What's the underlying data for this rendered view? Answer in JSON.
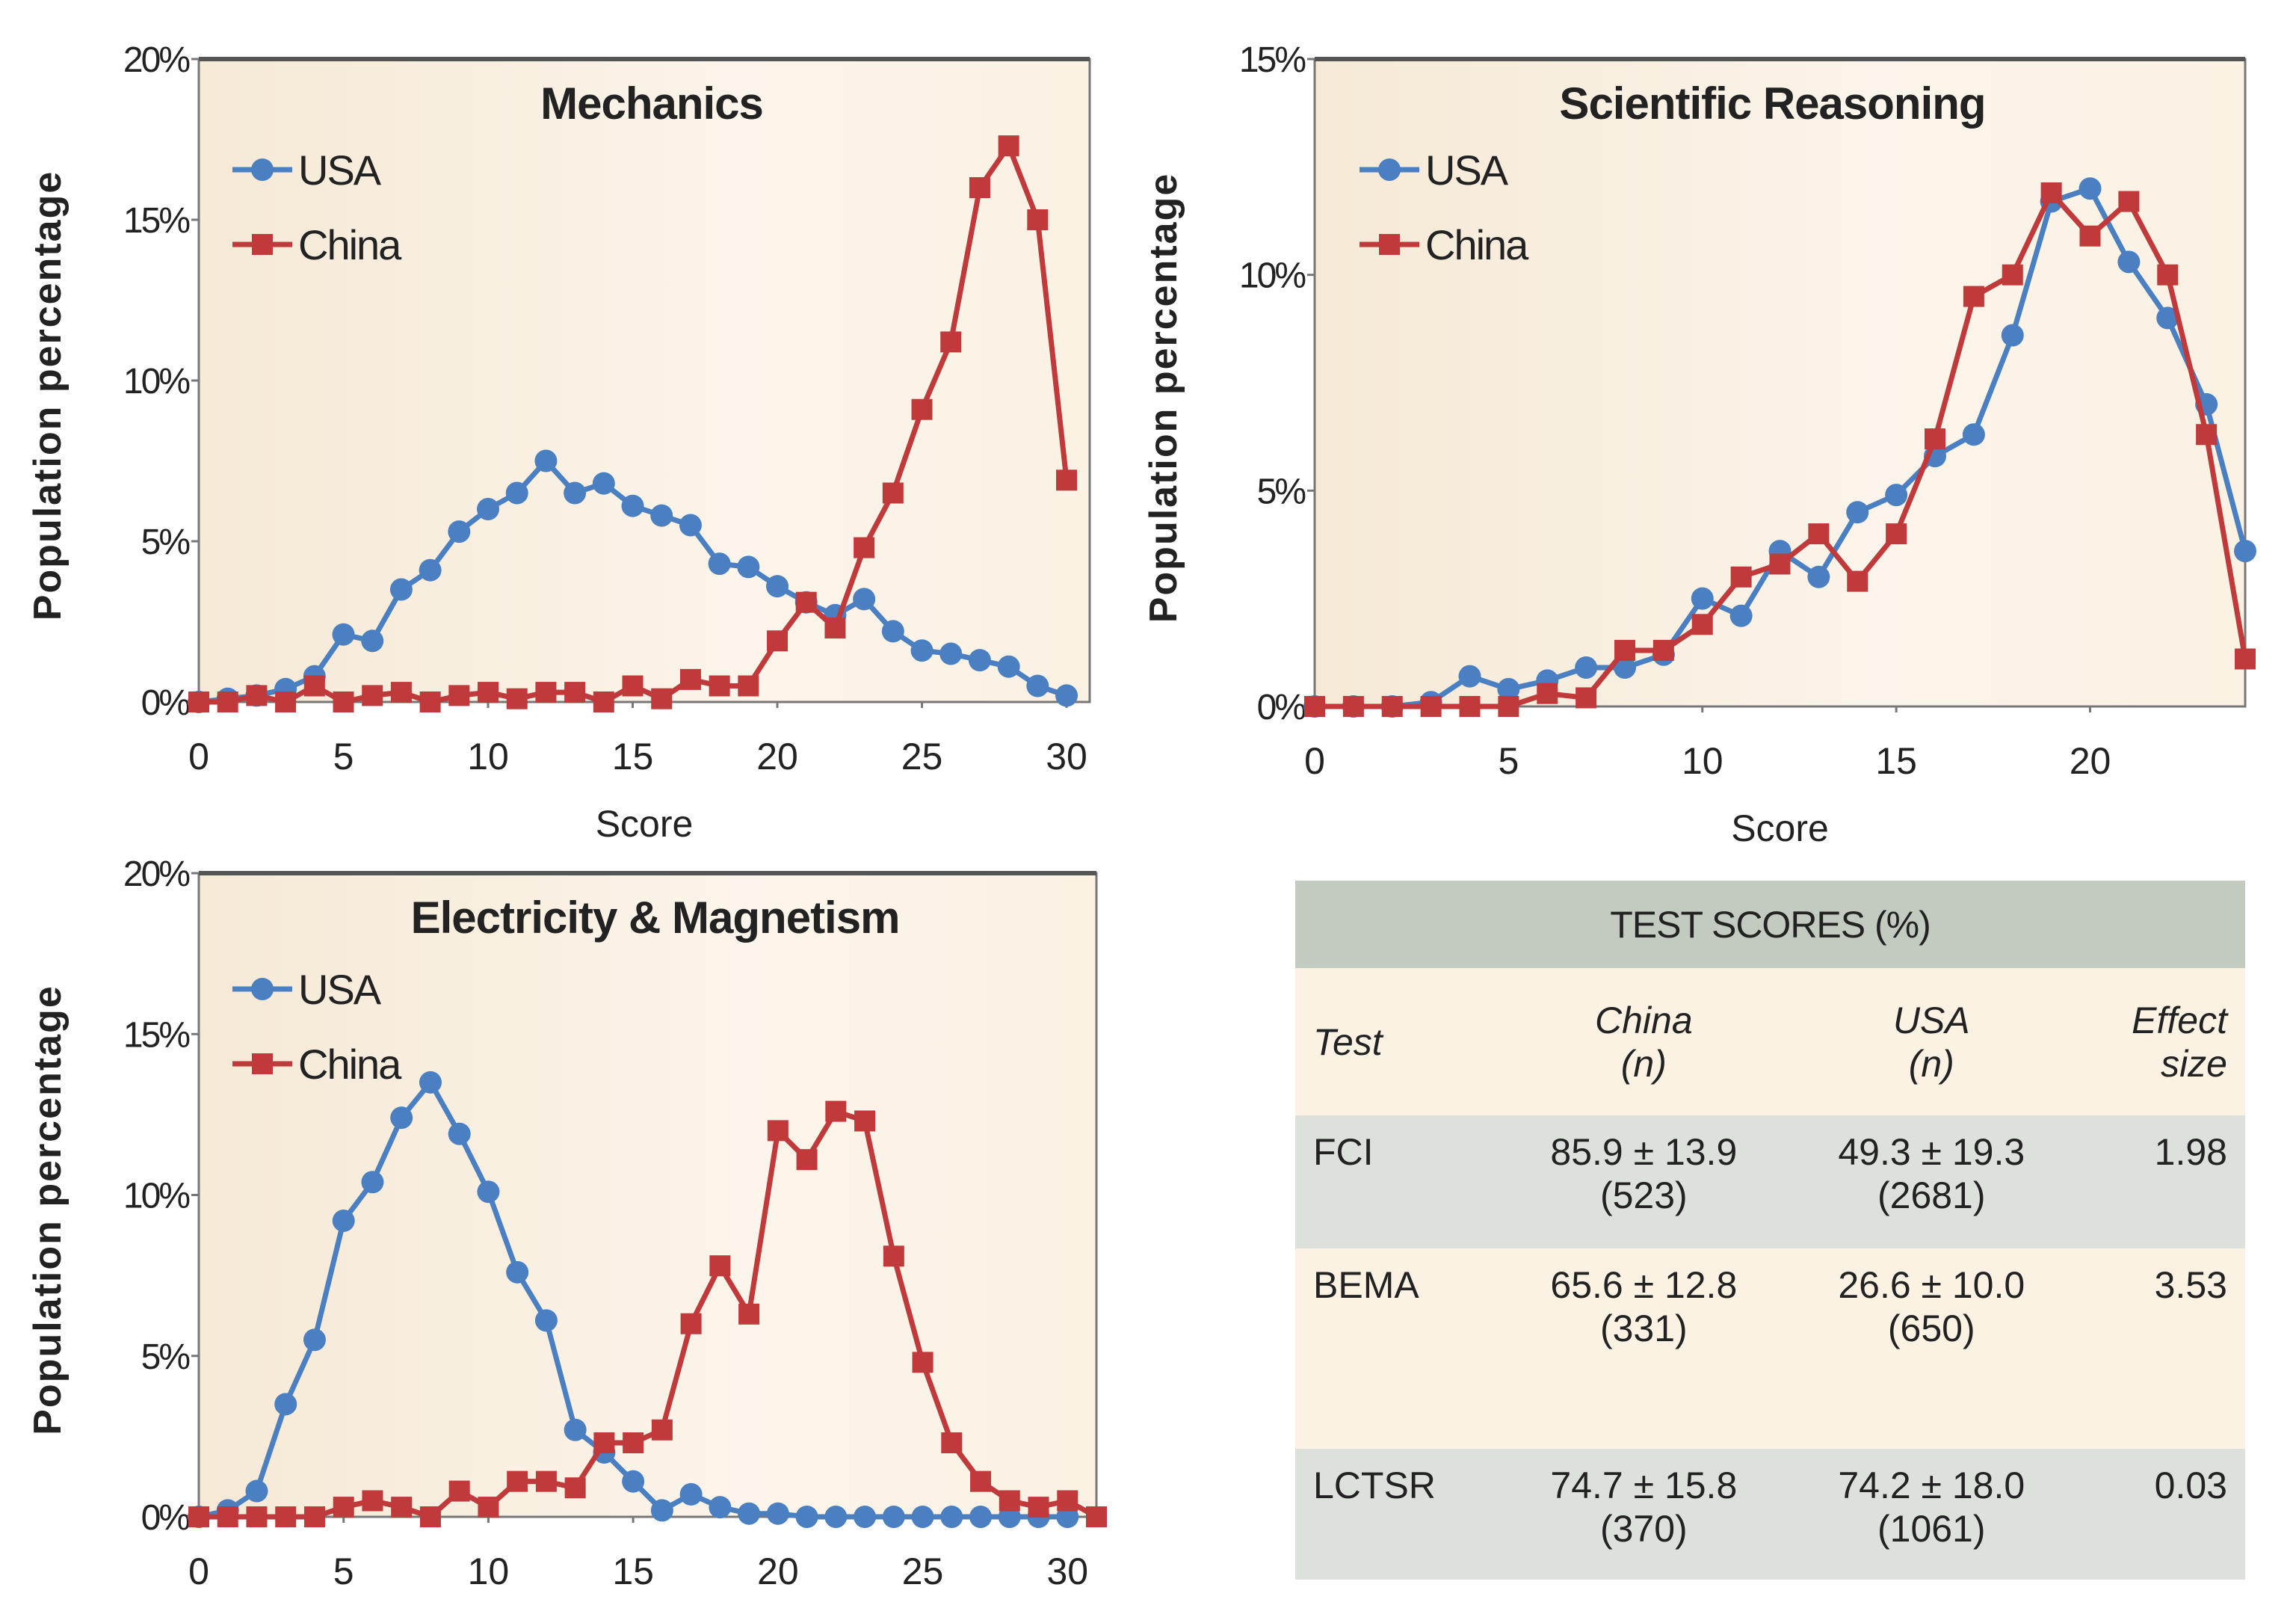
{
  "colors": {
    "USA": "#4a7fc1",
    "China": "#c0393b",
    "plot_bg": "#f7ecdb",
    "table_header": "#c3cbc0",
    "table_shaded": "#dde1db"
  },
  "chart_data": [
    {
      "type": "line",
      "title": "Mechanics",
      "xlabel": "Score",
      "ylabel": "Population percentage",
      "xlim": [
        0,
        30.8
      ],
      "ylim": [
        0,
        20
      ],
      "xticks": [
        0,
        5,
        10,
        15,
        20,
        25,
        30
      ],
      "yticks": [
        "0%",
        "5%",
        "10%",
        "15%",
        "20%"
      ],
      "legend": "top-left",
      "grid": false,
      "series": [
        {
          "name": "USA",
          "marker": "circle",
          "x": [
            0,
            1,
            2,
            3,
            4,
            5,
            6,
            7,
            8,
            9,
            10,
            11,
            12,
            13,
            14,
            15,
            16,
            17,
            18,
            19,
            20,
            21,
            22,
            23,
            24,
            25,
            26,
            27,
            28,
            29,
            30
          ],
          "values": [
            0,
            0.1,
            0.2,
            0.4,
            0.8,
            2.1,
            1.9,
            3.5,
            4.1,
            5.3,
            6.0,
            6.5,
            7.5,
            6.5,
            6.8,
            6.1,
            5.8,
            5.5,
            4.3,
            4.2,
            3.6,
            3.1,
            2.7,
            3.2,
            2.2,
            1.6,
            1.5,
            1.3,
            1.1,
            0.5,
            0.2
          ]
        },
        {
          "name": "China",
          "marker": "square",
          "x": [
            0,
            1,
            2,
            3,
            4,
            5,
            6,
            7,
            8,
            9,
            10,
            11,
            12,
            13,
            14,
            15,
            16,
            17,
            18,
            19,
            20,
            21,
            22,
            23,
            24,
            25,
            26,
            27,
            28,
            29,
            30
          ],
          "values": [
            0,
            0,
            0.2,
            0,
            0.5,
            0,
            0.2,
            0.3,
            0,
            0.2,
            0.3,
            0.1,
            0.3,
            0.3,
            0,
            0.5,
            0.1,
            0.7,
            0.5,
            0.5,
            1.9,
            3.1,
            2.3,
            4.8,
            6.5,
            9.1,
            11.2,
            16.0,
            17.3,
            15.0,
            6.9
          ]
        }
      ]
    },
    {
      "type": "line",
      "title": "Scientific Reasoning",
      "xlabel": "Score",
      "ylabel": "Population percentage",
      "xlim": [
        0,
        24
      ],
      "ylim": [
        0,
        15
      ],
      "xticks": [
        0,
        5,
        10,
        15,
        20
      ],
      "yticks": [
        "0%",
        "5%",
        "10%",
        "15%"
      ],
      "legend": "top-left",
      "grid": false,
      "series": [
        {
          "name": "USA",
          "marker": "circle",
          "x": [
            0,
            1,
            2,
            3,
            4,
            5,
            6,
            7,
            8,
            9,
            10,
            11,
            12,
            13,
            14,
            15,
            16,
            17,
            18,
            19,
            20,
            21,
            22,
            23,
            24
          ],
          "values": [
            0,
            0,
            0,
            0.1,
            0.7,
            0.4,
            0.6,
            0.9,
            0.9,
            1.2,
            2.5,
            2.1,
            3.6,
            3.0,
            4.5,
            4.9,
            5.8,
            6.3,
            8.6,
            11.7,
            12.0,
            10.3,
            9.0,
            7.0,
            3.6
          ]
        },
        {
          "name": "China",
          "marker": "square",
          "x": [
            0,
            1,
            2,
            3,
            4,
            5,
            6,
            7,
            8,
            9,
            10,
            11,
            12,
            13,
            14,
            15,
            16,
            17,
            18,
            19,
            20,
            21,
            22,
            23,
            24
          ],
          "values": [
            0,
            0,
            0,
            0,
            0,
            0,
            0.3,
            0.2,
            1.3,
            1.3,
            1.9,
            3.0,
            3.3,
            4.0,
            2.9,
            4.0,
            6.2,
            9.5,
            10.0,
            11.9,
            10.9,
            11.7,
            10.0,
            6.3,
            1.1
          ]
        }
      ]
    },
    {
      "type": "line",
      "title": "Electricity & Magnetism",
      "xlabel": "Score",
      "ylabel": "Population percentage",
      "xlim": [
        0,
        31
      ],
      "ylim": [
        0,
        20
      ],
      "xticks": [
        0,
        5,
        10,
        15,
        20,
        25,
        30
      ],
      "yticks": [
        "0%",
        "5%",
        "10%",
        "15%",
        "20%"
      ],
      "legend": "top-left",
      "grid": false,
      "series": [
        {
          "name": "USA",
          "marker": "circle",
          "x": [
            0,
            1,
            2,
            3,
            4,
            5,
            6,
            7,
            8,
            9,
            10,
            11,
            12,
            13,
            14,
            15,
            16,
            17,
            18,
            19,
            20,
            21,
            22,
            23,
            24,
            25,
            26,
            27,
            28,
            29,
            30
          ],
          "values": [
            0,
            0.2,
            0.8,
            3.5,
            5.5,
            9.2,
            10.4,
            12.4,
            13.5,
            11.9,
            10.1,
            7.6,
            6.1,
            2.7,
            2.0,
            1.1,
            0.2,
            0.7,
            0.3,
            0.1,
            0.1,
            0,
            0,
            0,
            0,
            0,
            0,
            0,
            0,
            0,
            0
          ]
        },
        {
          "name": "China",
          "marker": "square",
          "x": [
            0,
            1,
            2,
            3,
            4,
            5,
            6,
            7,
            8,
            9,
            10,
            11,
            12,
            13,
            14,
            15,
            16,
            17,
            18,
            19,
            20,
            21,
            22,
            23,
            24,
            25,
            26,
            27,
            28,
            29,
            30,
            31
          ],
          "values": [
            0,
            0,
            0,
            0,
            0,
            0.3,
            0.5,
            0.3,
            0,
            0.8,
            0.3,
            1.1,
            1.1,
            0.9,
            2.3,
            2.3,
            2.7,
            6.0,
            7.8,
            6.3,
            12.0,
            11.1,
            12.6,
            12.3,
            8.1,
            4.8,
            2.3,
            1.1,
            0.5,
            0.3,
            0.5,
            0
          ]
        }
      ]
    },
    {
      "type": "table",
      "title": "TEST SCORES (%)",
      "columns": [
        {
          "line1": "Test",
          "line2": ""
        },
        {
          "line1": "China",
          "line2": "(n)"
        },
        {
          "line1": "USA",
          "line2": "(n)"
        },
        {
          "line1": "Effect",
          "line2": "size"
        }
      ],
      "rows": [
        {
          "test": "FCI",
          "china": "85.9 ± 13.9",
          "china_n": "(523)",
          "usa": "49.3 ± 19.3",
          "usa_n": "(2681)",
          "effect": "1.98"
        },
        {
          "test": "BEMA",
          "china": "65.6 ± 12.8",
          "china_n": "(331)",
          "usa": "26.6 ± 10.0",
          "usa_n": "(650)",
          "effect": "3.53"
        },
        {
          "test": "LCTSR",
          "china": "74.7 ± 15.8",
          "china_n": "(370)",
          "usa": "74.2 ± 18.0",
          "usa_n": "(1061)",
          "effect": "0.03"
        }
      ]
    }
  ]
}
